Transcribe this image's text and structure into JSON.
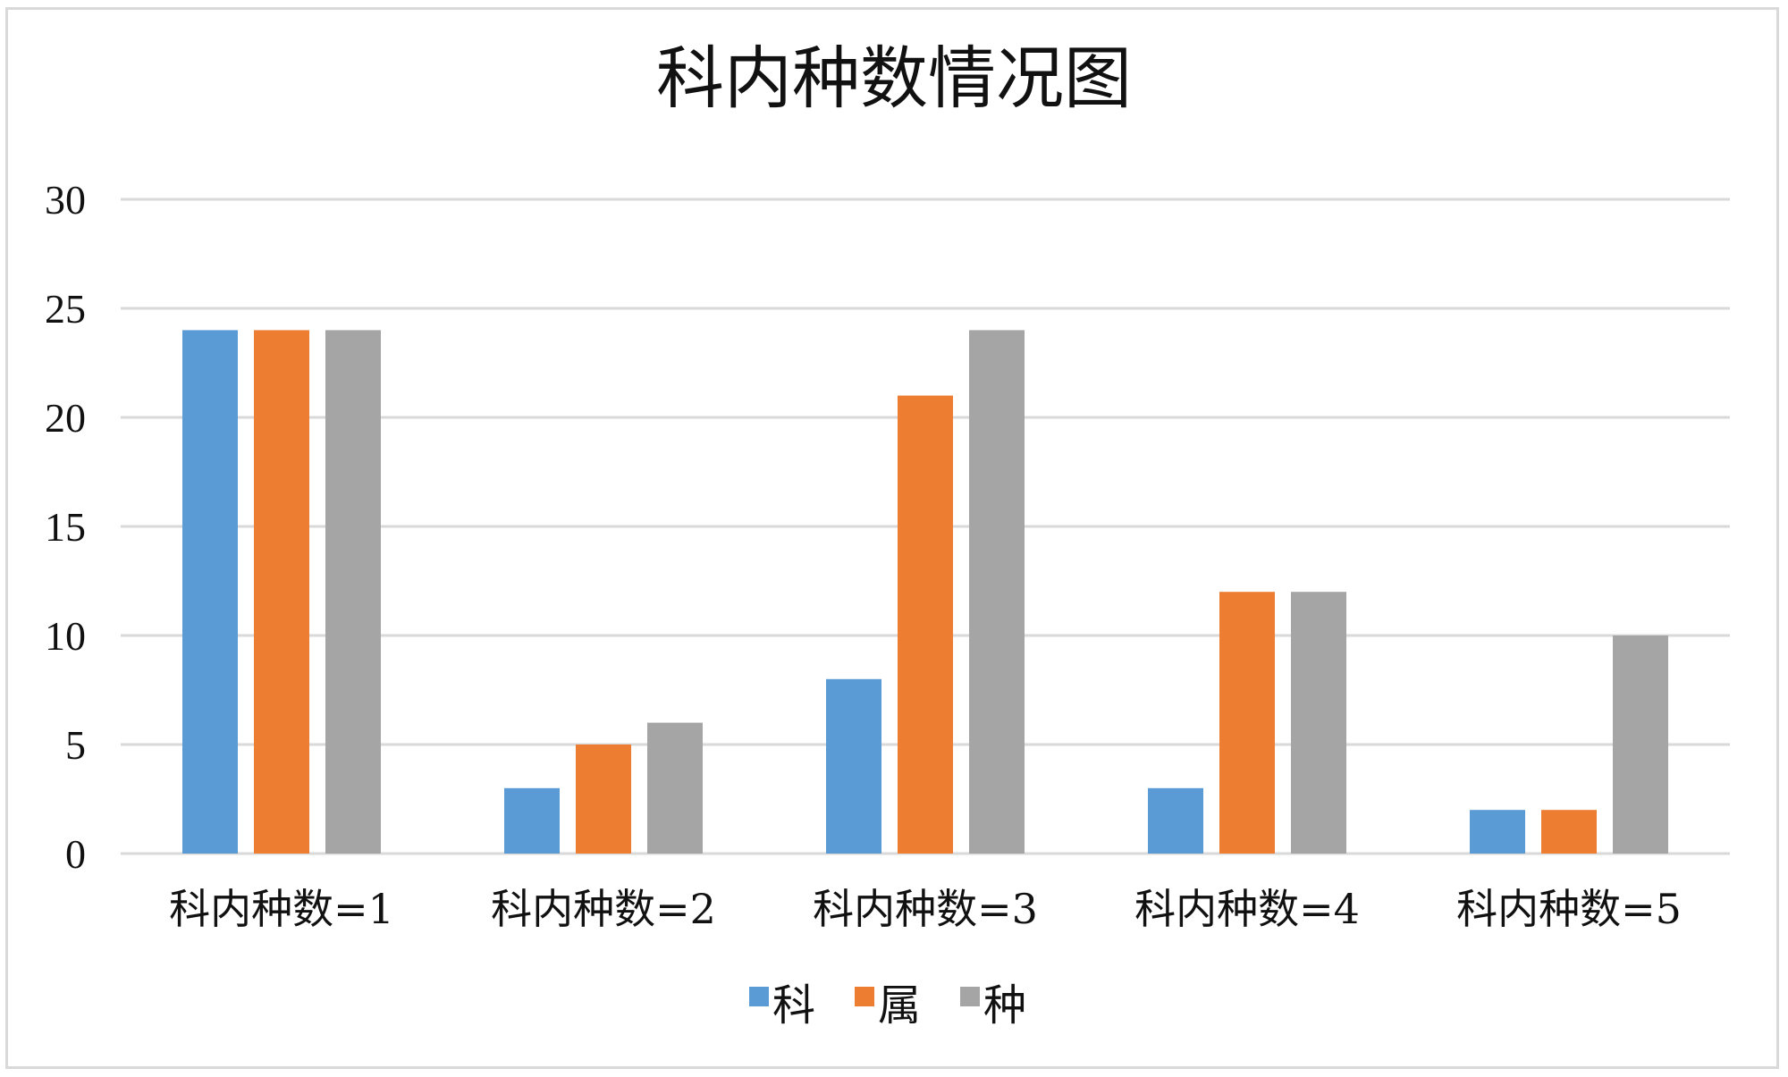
{
  "chart_data": {
    "type": "bar",
    "title": "科内种数情况图",
    "categories": [
      "科内种数=1",
      "科内种数=2",
      "科内种数=3",
      "科内种数=4",
      "科内种数=5"
    ],
    "series": [
      {
        "name": "科",
        "color": "#5B9BD5",
        "values": [
          24,
          3,
          8,
          3,
          2
        ]
      },
      {
        "name": "属",
        "color": "#ED7D31",
        "values": [
          24,
          5,
          21,
          12,
          2
        ]
      },
      {
        "name": "种",
        "color": "#A5A5A5",
        "values": [
          24,
          6,
          24,
          12,
          10
        ]
      }
    ],
    "ylim": [
      0,
      30
    ],
    "yticks": [
      0,
      5,
      10,
      15,
      20,
      25,
      30
    ],
    "grid": true,
    "legend_position": "bottom"
  }
}
